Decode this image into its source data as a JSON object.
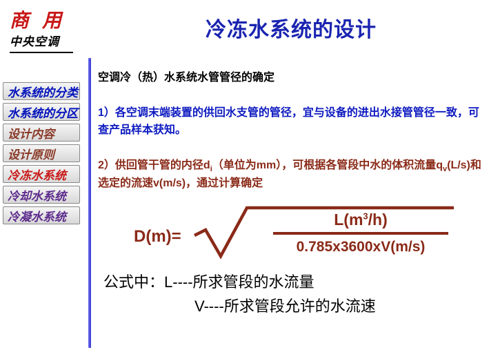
{
  "logo": {
    "top": "商 用",
    "bottom": "中央空调",
    "top_color": "#c81818",
    "bottom_color": "#000000"
  },
  "nav": [
    {
      "label": "水系统的分类",
      "colorClass": "nav-blue"
    },
    {
      "label": "水系统的分区",
      "colorClass": "nav-blue"
    },
    {
      "label": "设计内容",
      "colorClass": "nav-brown"
    },
    {
      "label": "设计原则",
      "colorClass": "nav-brown"
    },
    {
      "label": "冷冻水系统",
      "colorClass": "nav-red"
    },
    {
      "label": "冷却水系统",
      "colorClass": "nav-purple"
    },
    {
      "label": "冷凝水系统",
      "colorClass": "nav-purple"
    }
  ],
  "title": "冷冻水系统的设计",
  "section_heading": "空调冷（热）水系统水管管径的确定",
  "para1": "1）各空调末端装置的供回水支管的管径，宜与设备的进出水接管管径一致，可查产品样本获知。",
  "para2_pre": "2）供回管干管的内径d",
  "para2_sub": "i",
  "para2_mid": "（单位为mm），可根据各管段中水的体积流量q",
  "para2_sub2": "v",
  "para2_post": "(L/s)和选定的流速v(m/s)，通过计算确定",
  "formula": {
    "left": "D(m)=",
    "numerator": "L(m³/h)",
    "denominator": "0.785x3600xV(m/s)",
    "color": "#8a2a18"
  },
  "explain1_pre": "公式中：",
  "explain1_rest": "L----所求管段的水流量",
  "explain2": "V----所求管段允许的水流速",
  "colors": {
    "title": "#1a24b0",
    "divider": "#3a3ad0",
    "blue_text": "#0d1ac0",
    "brown_text": "#8a2a18"
  }
}
